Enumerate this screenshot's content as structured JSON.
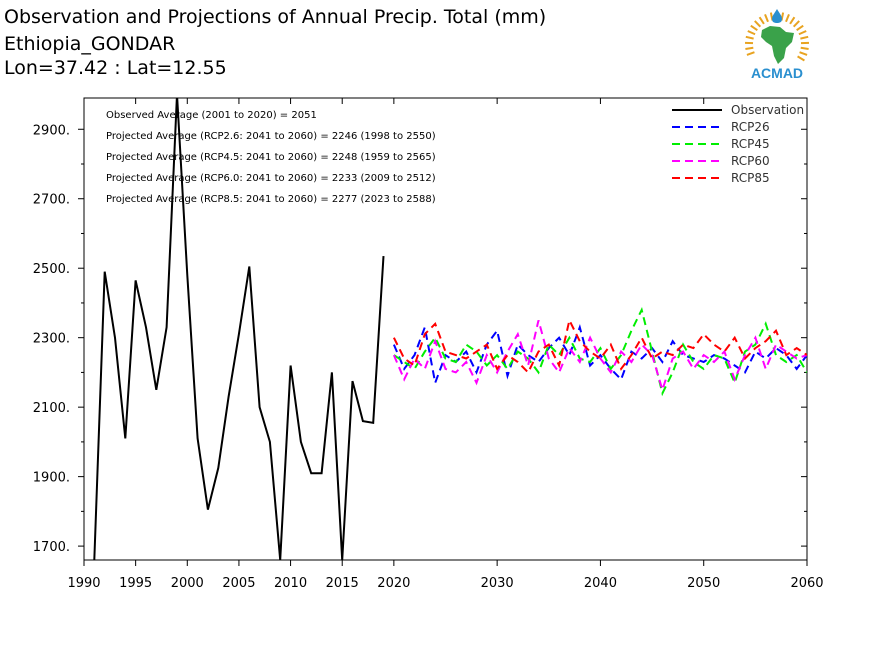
{
  "header": {
    "title_line1": "Observation and Projections of Annual Precip. Total (mm)",
    "title_line2": "Ethiopia_GONDAR",
    "title_line3": "Lon=37.42 : Lat=12.55"
  },
  "logo": {
    "text": "ACMAD",
    "icon": "africa-continent-icon",
    "color": "#2a8fcf",
    "accent": "#e8a320",
    "land": "#3aa24a"
  },
  "annotations": [
    "Observed Average (2001 to 2020) = 2051",
    "Projected Average (RCP2.6: 2041 to 2060) = 2246 (1998 to 2550)",
    "Projected Average (RCP4.5: 2041 to 2060) = 2248 (1959 to 2565)",
    "Projected Average (RCP6.0: 2041 to 2060) = 2233 (2009 to 2512)",
    "Projected Average (RCP8.5: 2041 to 2060) = 2277 (2023 to 2588)"
  ],
  "chart_data": {
    "type": "line",
    "xlim": [
      1990,
      2060
    ],
    "ylim": [
      1660,
      2990
    ],
    "y_ticks": [
      "1700.",
      "1900.",
      "2100.",
      "2300.",
      "2500.",
      "2700.",
      "2900."
    ],
    "y_tick_values": [
      1700,
      1900,
      2100,
      2300,
      2500,
      2700,
      2900
    ],
    "x_ticks": [
      "1990",
      "1995",
      "2000",
      "2005",
      "2010",
      "2015",
      "2020",
      "2030",
      "2040",
      "2050",
      "2060"
    ],
    "x_tick_values": [
      1990,
      1995,
      2000,
      2005,
      2010,
      2015,
      2020,
      2030,
      2040,
      2050,
      2060
    ],
    "legend_position": "top-right",
    "series": [
      {
        "name": "Observation",
        "color": "#000000",
        "dashed": false,
        "x": [
          1991,
          1992,
          1993,
          1994,
          1995,
          1996,
          1997,
          1998,
          1999,
          2000,
          2001,
          2002,
          2003,
          2004,
          2005,
          2006,
          2007,
          2008,
          2009,
          2010,
          2011,
          2012,
          2013,
          2014,
          2015,
          2016,
          2017,
          2018,
          2019,
          2020
        ],
        "values": [
          1660,
          2490,
          2300,
          2010,
          2465,
          2330,
          2150,
          2330,
          3000,
          2480,
          2010,
          1805,
          1925,
          2130,
          2310,
          2505,
          2100,
          2000,
          1660,
          2220,
          2000,
          1910,
          1910,
          2200,
          1660,
          2175,
          2060,
          2055,
          2535,
          null
        ]
      },
      {
        "name": "RCP26",
        "color": "#0000ff",
        "dashed": true,
        "x": [
          2020,
          2021,
          2022,
          2023,
          2024,
          2025,
          2026,
          2027,
          2028,
          2029,
          2030,
          2031,
          2032,
          2033,
          2034,
          2035,
          2036,
          2037,
          2038,
          2039,
          2040,
          2041,
          2042,
          2043,
          2044,
          2045,
          2046,
          2047,
          2048,
          2049,
          2050,
          2051,
          2052,
          2053,
          2054,
          2055,
          2056,
          2057,
          2058,
          2059,
          2060
        ],
        "values": [
          2280,
          2210,
          2250,
          2330,
          2170,
          2250,
          2230,
          2260,
          2200,
          2280,
          2320,
          2190,
          2280,
          2250,
          2230,
          2270,
          2300,
          2250,
          2330,
          2220,
          2250,
          2210,
          2180,
          2260,
          2240,
          2270,
          2230,
          2290,
          2250,
          2240,
          2230,
          2250,
          2240,
          2220,
          2200,
          2260,
          2240,
          2270,
          2250,
          2210,
          2250
        ]
      },
      {
        "name": "RCP45",
        "color": "#00ee00",
        "dashed": true,
        "x": [
          2020,
          2021,
          2022,
          2023,
          2024,
          2025,
          2026,
          2027,
          2028,
          2029,
          2030,
          2031,
          2032,
          2033,
          2034,
          2035,
          2036,
          2037,
          2038,
          2039,
          2040,
          2041,
          2042,
          2043,
          2044,
          2045,
          2046,
          2047,
          2048,
          2049,
          2050,
          2051,
          2052,
          2053,
          2054,
          2055,
          2056,
          2057,
          2058,
          2059,
          2060
        ],
        "values": [
          2250,
          2230,
          2210,
          2260,
          2300,
          2240,
          2230,
          2280,
          2260,
          2220,
          2250,
          2210,
          2260,
          2240,
          2200,
          2280,
          2250,
          2300,
          2240,
          2230,
          2270,
          2210,
          2250,
          2320,
          2380,
          2260,
          2140,
          2200,
          2280,
          2230,
          2210,
          2250,
          2240,
          2170,
          2260,
          2280,
          2340,
          2250,
          2230,
          2250,
          2200
        ]
      },
      {
        "name": "RCP60",
        "color": "#ff00ff",
        "dashed": true,
        "x": [
          2020,
          2021,
          2022,
          2023,
          2024,
          2025,
          2026,
          2027,
          2028,
          2029,
          2030,
          2031,
          2032,
          2033,
          2034,
          2035,
          2036,
          2037,
          2038,
          2039,
          2040,
          2041,
          2042,
          2043,
          2044,
          2045,
          2046,
          2047,
          2048,
          2049,
          2050,
          2051,
          2052,
          2053,
          2054,
          2055,
          2056,
          2057,
          2058,
          2059,
          2060
        ],
        "values": [
          2250,
          2180,
          2240,
          2210,
          2290,
          2210,
          2200,
          2230,
          2170,
          2250,
          2200,
          2260,
          2310,
          2220,
          2350,
          2240,
          2200,
          2270,
          2230,
          2300,
          2240,
          2200,
          2260,
          2230,
          2280,
          2250,
          2150,
          2240,
          2260,
          2210,
          2250,
          2230,
          2260,
          2180,
          2250,
          2300,
          2210,
          2280,
          2260,
          2240,
          2250
        ]
      },
      {
        "name": "RCP85",
        "color": "#ff0000",
        "dashed": true,
        "x": [
          2020,
          2021,
          2022,
          2023,
          2024,
          2025,
          2026,
          2027,
          2028,
          2029,
          2030,
          2031,
          2032,
          2033,
          2034,
          2035,
          2036,
          2037,
          2038,
          2039,
          2040,
          2041,
          2042,
          2043,
          2044,
          2045,
          2046,
          2047,
          2048,
          2049,
          2050,
          2051,
          2052,
          2053,
          2054,
          2055,
          2056,
          2057,
          2058,
          2059,
          2060
        ],
        "values": [
          2300,
          2240,
          2220,
          2310,
          2340,
          2260,
          2250,
          2240,
          2260,
          2280,
          2210,
          2250,
          2230,
          2200,
          2260,
          2280,
          2220,
          2350,
          2290,
          2260,
          2240,
          2280,
          2210,
          2250,
          2300,
          2240,
          2260,
          2250,
          2280,
          2270,
          2310,
          2280,
          2260,
          2300,
          2240,
          2270,
          2290,
          2320,
          2250,
          2270,
          2250
        ]
      }
    ]
  }
}
